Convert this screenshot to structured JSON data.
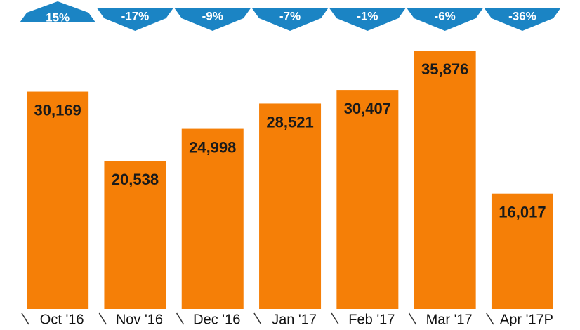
{
  "chart_data": {
    "type": "bar",
    "categories": [
      "Oct '16",
      "Nov '16",
      "Dec '16",
      "Jan '17",
      "Feb '17",
      "Mar '17",
      "Apr '17P"
    ],
    "values": [
      30169,
      20538,
      24998,
      28521,
      30407,
      35876,
      16017
    ],
    "value_labels": [
      "30,169",
      "20,538",
      "24,998",
      "28,521",
      "30,407",
      "35,876",
      "16,017"
    ],
    "color": "#f57f07",
    "changes": {
      "values": [
        15,
        -17,
        -9,
        -7,
        -1,
        -6,
        -36
      ],
      "value_labels": [
        "15%",
        "-17%",
        "-9%",
        "-7%",
        "-1%",
        "-6%",
        "-36%"
      ],
      "color": "#1b84c4"
    }
  }
}
